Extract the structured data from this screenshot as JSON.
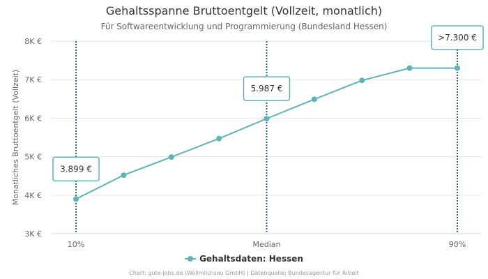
{
  "chart_data": {
    "type": "line",
    "title": "Gehaltsspanne Bruttoentgelt (Vollzeit, monatlich)",
    "subtitle": "Für Softwareentwicklung und Programmierung (Bundesland Hessen)",
    "ylabel": "Monatliches Bruttoentgelt (Vollzeit)",
    "xlabel": "",
    "ylim": [
      3000,
      8000
    ],
    "yticks": [
      {
        "value": 3000,
        "label": "3K €"
      },
      {
        "value": 4000,
        "label": "4K €"
      },
      {
        "value": 5000,
        "label": "5K €"
      },
      {
        "value": 6000,
        "label": "6K €"
      },
      {
        "value": 7000,
        "label": "7K €"
      },
      {
        "value": 8000,
        "label": "8K €"
      }
    ],
    "x": [
      10,
      20,
      30,
      40,
      50,
      60,
      70,
      80,
      90
    ],
    "xticks": [
      {
        "value": 10,
        "label": "10%"
      },
      {
        "value": 50,
        "label": "Median"
      },
      {
        "value": 90,
        "label": "90%"
      }
    ],
    "series": [
      {
        "name": "Gehaltsdaten: Hessen",
        "color": "#5fb3b3",
        "values": [
          3899,
          4520,
          4990,
          5470,
          5987,
          6490,
          6980,
          7300,
          7300
        ]
      }
    ],
    "reference_lines": [
      {
        "x": 10,
        "label": "3.899 €",
        "value": 3899
      },
      {
        "x": 50,
        "label": "5.987 €",
        "value": 5987
      },
      {
        "x": 90,
        "label": ">7.300 €",
        "value": 7300
      }
    ],
    "reference_color": "#1f5f8b",
    "grid": true,
    "legend": "bottom-center"
  },
  "credits": "Chart: gute-jobs.de (Wollmilchsau GmbH) | Datenquelle: Bundesagentur für Arbeit"
}
